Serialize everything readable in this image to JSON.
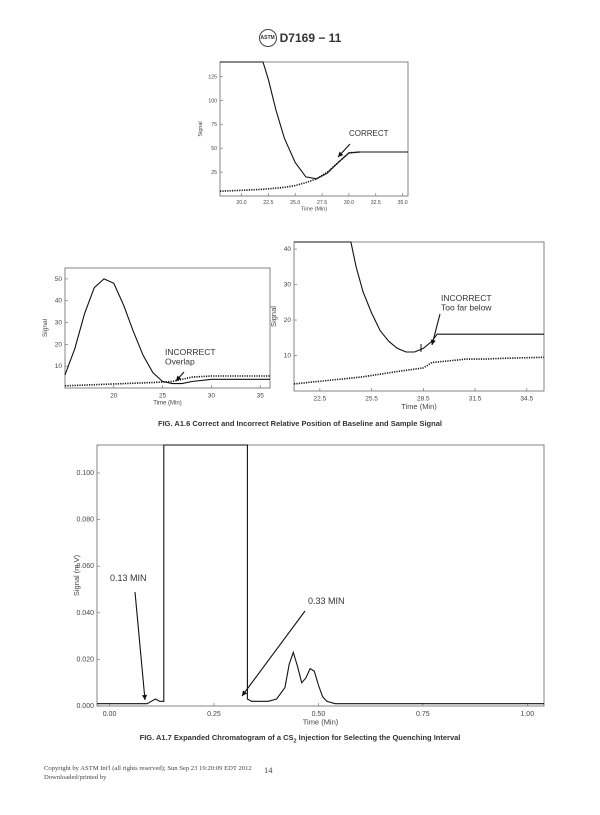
{
  "header": {
    "logo_text": "ASTM",
    "designation": "D7169 − 11"
  },
  "chart_data": [
    {
      "type": "line",
      "annotation": "CORRECT",
      "xlabel": "Time (Min)",
      "ylabel": "Signal",
      "xlim": [
        18.0,
        35.5
      ],
      "ylim": [
        0,
        140
      ],
      "xticks": [
        "20.0",
        "22.5",
        "25.0",
        "27.5",
        "30.0",
        "32.5",
        "35.0"
      ],
      "yticks": [
        "25",
        "50",
        "75",
        "100",
        "125"
      ],
      "series": [
        {
          "style": "solid",
          "x": [
            18.0,
            22.0,
            22.5,
            23.2,
            24.0,
            25.0,
            26.0,
            27.0,
            28.0,
            29.0,
            30.0,
            31.0,
            35.5
          ],
          "y": [
            140,
            140,
            122,
            90,
            60,
            35,
            20,
            18,
            24,
            35,
            45,
            46,
            46
          ]
        },
        {
          "style": "dotted",
          "x": [
            18.0,
            20.0,
            22.0,
            24.0,
            25.0,
            26.0,
            27.0,
            28.0,
            29.0,
            30.0,
            31.0
          ],
          "y": [
            5,
            6,
            7,
            9,
            11,
            14,
            18,
            25,
            35,
            45,
            46
          ]
        }
      ]
    },
    {
      "type": "line",
      "annotation": "INCORRECT\nOverlap",
      "xlabel": "Time (Min)",
      "ylabel": "Signal",
      "xlim": [
        15,
        36
      ],
      "ylim": [
        0,
        55
      ],
      "xticks": [
        "20",
        "25",
        "30",
        "35"
      ],
      "yticks": [
        "10",
        "20",
        "30",
        "40",
        "50"
      ],
      "series": [
        {
          "style": "solid",
          "x": [
            15,
            16,
            17,
            18,
            19,
            20,
            21,
            22,
            23,
            24,
            25,
            26,
            27,
            28,
            30,
            32,
            36
          ],
          "y": [
            6,
            18,
            34,
            46,
            50,
            48,
            38,
            26,
            15,
            7,
            3,
            2,
            2,
            3,
            4,
            4,
            4
          ]
        },
        {
          "style": "dotted",
          "x": [
            15,
            18,
            21,
            24,
            26,
            27,
            28,
            30,
            32,
            36
          ],
          "y": [
            1,
            1.5,
            2,
            2.5,
            3,
            4,
            5,
            5.5,
            5.5,
            5.5
          ]
        }
      ]
    },
    {
      "type": "line",
      "annotation": "INCORRECT\nToo far below",
      "xlabel": "Time (Min)",
      "ylabel": "Signal",
      "xlim": [
        21,
        35.5
      ],
      "ylim": [
        0,
        42
      ],
      "xticks": [
        "22.5",
        "25.5",
        "28.5",
        "31.5",
        "34.5"
      ],
      "yticks": [
        "10",
        "20",
        "30",
        "40"
      ],
      "series": [
        {
          "style": "solid",
          "x": [
            21,
            24.3,
            24.6,
            25,
            25.5,
            26,
            26.5,
            27,
            27.5,
            28,
            28.5,
            29,
            29.3,
            29.6,
            35.5
          ],
          "y": [
            42,
            42,
            35,
            28,
            22,
            17,
            14,
            12,
            11,
            11,
            12,
            14,
            16,
            16,
            16
          ]
        },
        {
          "style": "dotted",
          "x": [
            21,
            23,
            25,
            27,
            28.5,
            29,
            30,
            31,
            32,
            33,
            35.5
          ],
          "y": [
            2,
            3,
            4,
            5.5,
            6.5,
            8,
            8.5,
            9,
            9,
            9.2,
            9.5
          ]
        }
      ]
    },
    {
      "type": "line",
      "xlabel": "Time (Min)",
      "ylabel": "Signal (m V)",
      "xlim": [
        -0.03,
        1.04
      ],
      "ylim": [
        0,
        0.112
      ],
      "xticks": [
        "0.00",
        "0.25",
        "0.50",
        "0.75",
        "1.00"
      ],
      "yticks": [
        "0.000",
        "0.020",
        "0.040",
        "0.060",
        "0.080",
        "0.100"
      ],
      "annotations": [
        "0.13 MIN",
        "0.33 MIN"
      ],
      "series": [
        {
          "style": "solid",
          "x": [
            -0.03,
            0.08,
            0.09,
            0.1,
            0.11,
            0.12,
            0.13,
            0.13,
            0.33,
            0.33,
            0.34,
            0.36,
            0.38,
            0.4,
            0.42,
            0.43,
            0.44,
            0.45,
            0.46,
            0.47,
            0.48,
            0.49,
            0.5,
            0.51,
            0.52,
            0.54,
            0.6,
            1.04
          ],
          "y": [
            0.001,
            0.001,
            0.001,
            0.002,
            0.003,
            0.002,
            0.002,
            0.112,
            0.112,
            0.003,
            0.002,
            0.002,
            0.002,
            0.003,
            0.008,
            0.018,
            0.023,
            0.017,
            0.01,
            0.012,
            0.016,
            0.015,
            0.009,
            0.004,
            0.002,
            0.001,
            0.001,
            0.001
          ]
        }
      ]
    }
  ],
  "captions": {
    "fig_a16": "FIG. A1.6 Correct and Incorrect Relative Position of Baseline and Sample Signal",
    "fig_a17_pre": "FIG. A1.7 Expanded Chromatogram of a CS",
    "fig_a17_sub": "2",
    "fig_a17_post": " Injection for Selecting the Quenching Interval"
  },
  "footer": {
    "copyright": "Copyright by ASTM Int'l (all rights reserved); Sun Sep 23 19:20:09 EDT 2012",
    "downloaded": "Downloaded/printed by",
    "page_number": "14"
  }
}
